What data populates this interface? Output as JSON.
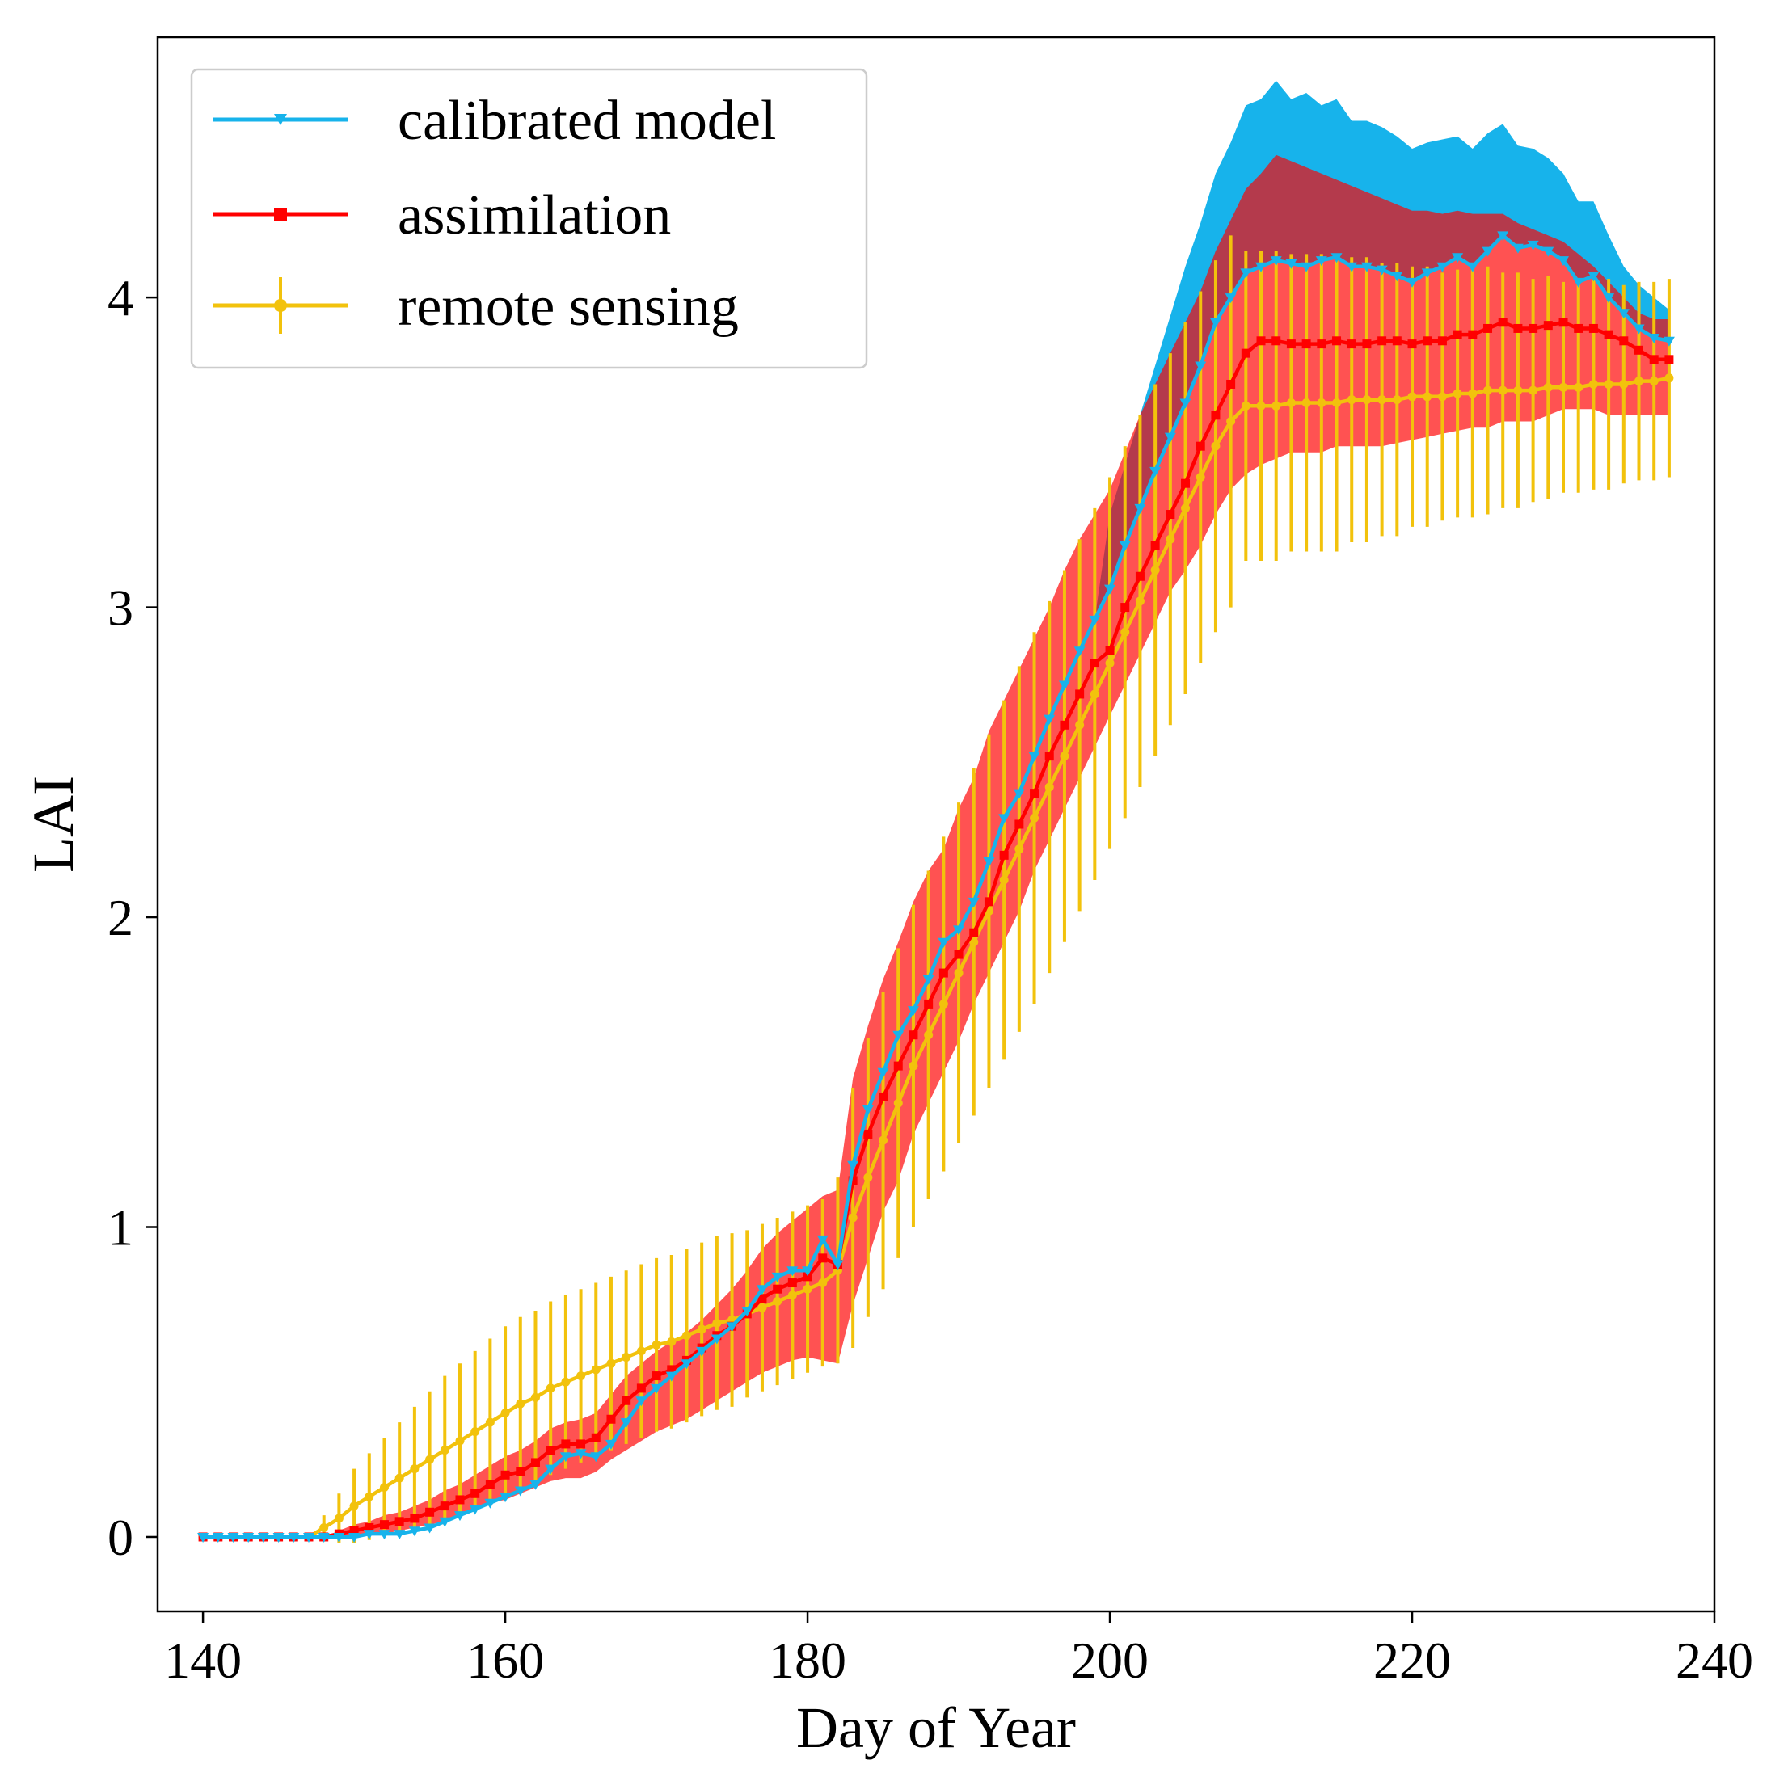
{
  "chart_data": {
    "type": "line",
    "title": "",
    "xlabel": "Day of Year",
    "ylabel": "LAI",
    "xlim": [
      137,
      240
    ],
    "ylim": [
      -0.24,
      4.84
    ],
    "xticks": [
      140,
      160,
      180,
      200,
      220,
      240
    ],
    "xtick_labels": [
      "140",
      "160",
      "180",
      "200",
      "220",
      "240"
    ],
    "yticks": [
      0,
      1,
      2,
      3,
      4
    ],
    "ytick_labels": [
      "0",
      "1",
      "2",
      "3",
      "4"
    ],
    "legend_position": "top-left",
    "grid": false,
    "x": [
      140,
      141,
      142,
      143,
      144,
      145,
      146,
      147,
      148,
      149,
      150,
      151,
      152,
      153,
      154,
      155,
      156,
      157,
      158,
      159,
      160,
      161,
      162,
      163,
      164,
      165,
      166,
      167,
      168,
      169,
      170,
      171,
      172,
      173,
      174,
      175,
      176,
      177,
      178,
      179,
      180,
      181,
      182,
      183,
      184,
      185,
      186,
      187,
      188,
      189,
      190,
      191,
      192,
      193,
      194,
      195,
      196,
      197,
      198,
      199,
      200,
      201,
      202,
      203,
      204,
      205,
      206,
      207,
      208,
      209,
      210,
      211,
      212,
      213,
      214,
      215,
      216,
      217,
      218,
      219,
      220,
      221,
      222,
      223,
      224,
      225,
      226,
      227,
      228,
      229,
      230,
      231,
      232,
      233,
      234,
      235,
      236,
      237
    ],
    "series": [
      {
        "name": "calibrated model",
        "color": "#17b3eb",
        "marker": "triangle-down",
        "values": [
          0,
          0,
          0,
          0,
          0,
          0,
          0,
          0,
          0,
          0,
          0,
          0.01,
          0.01,
          0.01,
          0.02,
          0.03,
          0.05,
          0.07,
          0.09,
          0.11,
          0.13,
          0.15,
          0.17,
          0.22,
          0.26,
          0.27,
          0.26,
          0.3,
          0.37,
          0.44,
          0.48,
          0.52,
          0.56,
          0.6,
          0.64,
          0.68,
          0.73,
          0.8,
          0.84,
          0.86,
          0.86,
          0.96,
          0.88,
          1.2,
          1.38,
          1.5,
          1.62,
          1.7,
          1.8,
          1.92,
          1.96,
          2.05,
          2.18,
          2.32,
          2.4,
          2.52,
          2.64,
          2.75,
          2.86,
          2.96,
          3.06,
          3.2,
          3.32,
          3.44,
          3.55,
          3.66,
          3.78,
          3.92,
          4.0,
          4.08,
          4.1,
          4.12,
          4.11,
          4.1,
          4.12,
          4.13,
          4.1,
          4.1,
          4.09,
          4.07,
          4.05,
          4.08,
          4.1,
          4.13,
          4.1,
          4.15,
          4.2,
          4.16,
          4.17,
          4.15,
          4.12,
          4.05,
          4.07,
          4.0,
          3.95,
          3.9,
          3.87,
          3.86
        ],
        "band_upper": [
          0,
          0,
          0,
          0,
          0,
          0,
          0,
          0,
          0,
          0,
          0,
          0.01,
          0.01,
          0.01,
          0.02,
          0.03,
          0.05,
          0.07,
          0.09,
          0.11,
          0.13,
          0.15,
          0.17,
          0.22,
          0.26,
          0.27,
          0.26,
          0.3,
          0.37,
          0.44,
          0.48,
          0.52,
          0.56,
          0.6,
          0.64,
          0.68,
          0.73,
          0.8,
          0.84,
          0.86,
          0.86,
          0.96,
          0.88,
          1.2,
          1.38,
          1.5,
          1.62,
          1.7,
          1.8,
          1.92,
          1.96,
          2.05,
          2.18,
          2.32,
          2.4,
          2.52,
          2.64,
          2.75,
          2.86,
          2.96,
          3.3,
          3.46,
          3.62,
          3.78,
          3.94,
          4.1,
          4.24,
          4.4,
          4.5,
          4.62,
          4.64,
          4.7,
          4.64,
          4.66,
          4.62,
          4.64,
          4.57,
          4.57,
          4.55,
          4.52,
          4.48,
          4.5,
          4.51,
          4.52,
          4.48,
          4.53,
          4.56,
          4.49,
          4.48,
          4.45,
          4.4,
          4.31,
          4.31,
          4.2,
          4.1,
          4.04,
          4.0,
          3.96
        ],
        "band_lower": [
          0,
          0,
          0,
          0,
          0,
          0,
          0,
          0,
          0,
          0,
          0,
          0.01,
          0.01,
          0.01,
          0.02,
          0.03,
          0.05,
          0.07,
          0.09,
          0.11,
          0.13,
          0.15,
          0.17,
          0.22,
          0.26,
          0.27,
          0.26,
          0.3,
          0.37,
          0.44,
          0.48,
          0.52,
          0.56,
          0.6,
          0.64,
          0.68,
          0.73,
          0.8,
          0.84,
          0.86,
          0.86,
          0.96,
          0.88,
          1.2,
          1.38,
          1.5,
          1.62,
          1.7,
          1.8,
          1.92,
          1.96,
          2.05,
          2.18,
          2.32,
          2.4,
          2.52,
          2.64,
          2.75,
          2.86,
          2.96,
          3.06,
          3.2,
          3.32,
          3.44,
          3.55,
          3.66,
          3.78,
          3.92,
          4.0,
          4.08,
          4.1,
          4.12,
          4.11,
          4.1,
          4.12,
          4.13,
          4.1,
          4.1,
          4.09,
          4.07,
          4.05,
          4.08,
          4.1,
          4.13,
          4.1,
          4.15,
          4.2,
          4.16,
          4.17,
          4.15,
          4.12,
          4.05,
          4.07,
          4.0,
          3.95,
          3.9,
          3.87,
          3.86
        ]
      },
      {
        "name": "assimilation",
        "color": "#ff0000",
        "marker": "square",
        "values": [
          0,
          0,
          0,
          0,
          0,
          0,
          0,
          0,
          0,
          0.01,
          0.02,
          0.03,
          0.04,
          0.05,
          0.06,
          0.08,
          0.1,
          0.12,
          0.14,
          0.17,
          0.2,
          0.21,
          0.24,
          0.28,
          0.3,
          0.3,
          0.32,
          0.38,
          0.44,
          0.48,
          0.52,
          0.54,
          0.57,
          0.61,
          0.65,
          0.68,
          0.72,
          0.77,
          0.8,
          0.82,
          0.84,
          0.9,
          0.88,
          1.15,
          1.3,
          1.42,
          1.52,
          1.62,
          1.72,
          1.82,
          1.88,
          1.95,
          2.05,
          2.2,
          2.3,
          2.4,
          2.52,
          2.62,
          2.72,
          2.82,
          2.86,
          3.0,
          3.1,
          3.2,
          3.3,
          3.4,
          3.52,
          3.62,
          3.72,
          3.82,
          3.86,
          3.86,
          3.85,
          3.85,
          3.85,
          3.86,
          3.85,
          3.85,
          3.86,
          3.86,
          3.85,
          3.86,
          3.86,
          3.88,
          3.88,
          3.9,
          3.92,
          3.9,
          3.9,
          3.91,
          3.92,
          3.9,
          3.9,
          3.88,
          3.86,
          3.83,
          3.8,
          3.8
        ],
        "band_upper": [
          0,
          0,
          0,
          0,
          0,
          0,
          0,
          0,
          0,
          0.02,
          0.04,
          0.05,
          0.07,
          0.08,
          0.1,
          0.12,
          0.15,
          0.17,
          0.2,
          0.23,
          0.26,
          0.28,
          0.31,
          0.35,
          0.37,
          0.38,
          0.4,
          0.46,
          0.52,
          0.56,
          0.6,
          0.63,
          0.66,
          0.7,
          0.75,
          0.8,
          0.86,
          0.93,
          0.98,
          1.02,
          1.06,
          1.1,
          1.12,
          1.48,
          1.65,
          1.8,
          1.92,
          2.05,
          2.15,
          2.22,
          2.35,
          2.45,
          2.6,
          2.7,
          2.8,
          2.9,
          3.0,
          3.12,
          3.22,
          3.3,
          3.38,
          3.5,
          3.62,
          3.72,
          3.82,
          3.92,
          4.02,
          4.15,
          4.25,
          4.35,
          4.4,
          4.46,
          4.44,
          4.42,
          4.4,
          4.38,
          4.36,
          4.34,
          4.32,
          4.3,
          4.28,
          4.28,
          4.27,
          4.28,
          4.27,
          4.27,
          4.27,
          4.24,
          4.22,
          4.2,
          4.18,
          4.14,
          4.1,
          4.05,
          4.0,
          3.95,
          3.93,
          3.93
        ],
        "band_lower": [
          0,
          0,
          0,
          0,
          0,
          0,
          0,
          0,
          0,
          0,
          0,
          0.01,
          0.01,
          0.02,
          0.03,
          0.04,
          0.05,
          0.07,
          0.09,
          0.11,
          0.12,
          0.14,
          0.16,
          0.18,
          0.19,
          0.19,
          0.21,
          0.25,
          0.28,
          0.31,
          0.34,
          0.36,
          0.38,
          0.41,
          0.44,
          0.47,
          0.5,
          0.53,
          0.55,
          0.57,
          0.58,
          0.57,
          0.56,
          0.75,
          0.9,
          1.05,
          1.15,
          1.3,
          1.4,
          1.5,
          1.6,
          1.72,
          1.82,
          1.92,
          2.02,
          2.15,
          2.25,
          2.35,
          2.45,
          2.55,
          2.65,
          2.75,
          2.85,
          2.95,
          3.05,
          3.12,
          3.2,
          3.3,
          3.38,
          3.43,
          3.46,
          3.48,
          3.5,
          3.5,
          3.5,
          3.52,
          3.52,
          3.52,
          3.52,
          3.53,
          3.54,
          3.55,
          3.56,
          3.57,
          3.58,
          3.58,
          3.6,
          3.6,
          3.6,
          3.62,
          3.64,
          3.64,
          3.64,
          3.62,
          3.62,
          3.62,
          3.62,
          3.62
        ]
      },
      {
        "name": "remote sensing",
        "color": "#f2c20c",
        "marker": "circle",
        "values": [
          0,
          0,
          0,
          0,
          0,
          0,
          0,
          0,
          0.03,
          0.06,
          0.1,
          0.13,
          0.16,
          0.19,
          0.22,
          0.25,
          0.28,
          0.31,
          0.34,
          0.37,
          0.4,
          0.43,
          0.45,
          0.48,
          0.5,
          0.52,
          0.54,
          0.56,
          0.58,
          0.6,
          0.62,
          0.63,
          0.65,
          0.67,
          0.69,
          0.7,
          0.72,
          0.74,
          0.76,
          0.78,
          0.8,
          0.82,
          0.86,
          1.03,
          1.16,
          1.28,
          1.4,
          1.52,
          1.62,
          1.72,
          1.82,
          1.92,
          2.02,
          2.12,
          2.22,
          2.32,
          2.42,
          2.52,
          2.62,
          2.72,
          2.82,
          2.92,
          3.02,
          3.12,
          3.22,
          3.32,
          3.42,
          3.52,
          3.6,
          3.65,
          3.65,
          3.65,
          3.66,
          3.66,
          3.66,
          3.66,
          3.67,
          3.67,
          3.67,
          3.67,
          3.68,
          3.68,
          3.68,
          3.69,
          3.69,
          3.7,
          3.7,
          3.7,
          3.7,
          3.71,
          3.71,
          3.71,
          3.72,
          3.72,
          3.72,
          3.73,
          3.73,
          3.74
        ],
        "error": [
          0,
          0,
          0,
          0,
          0,
          0,
          0,
          0,
          0.04,
          0.08,
          0.12,
          0.14,
          0.16,
          0.18,
          0.2,
          0.22,
          0.24,
          0.25,
          0.26,
          0.27,
          0.28,
          0.28,
          0.28,
          0.28,
          0.28,
          0.28,
          0.28,
          0.28,
          0.28,
          0.28,
          0.28,
          0.28,
          0.28,
          0.28,
          0.28,
          0.28,
          0.27,
          0.27,
          0.27,
          0.27,
          0.27,
          0.27,
          0.3,
          0.42,
          0.45,
          0.48,
          0.5,
          0.52,
          0.53,
          0.54,
          0.55,
          0.56,
          0.57,
          0.58,
          0.59,
          0.6,
          0.6,
          0.6,
          0.6,
          0.6,
          0.6,
          0.6,
          0.6,
          0.6,
          0.6,
          0.6,
          0.6,
          0.6,
          0.6,
          0.5,
          0.5,
          0.5,
          0.48,
          0.48,
          0.48,
          0.48,
          0.46,
          0.46,
          0.44,
          0.44,
          0.42,
          0.42,
          0.4,
          0.4,
          0.4,
          0.4,
          0.38,
          0.38,
          0.36,
          0.36,
          0.34,
          0.34,
          0.34,
          0.34,
          0.32,
          0.32,
          0.32,
          0.32
        ]
      }
    ]
  }
}
